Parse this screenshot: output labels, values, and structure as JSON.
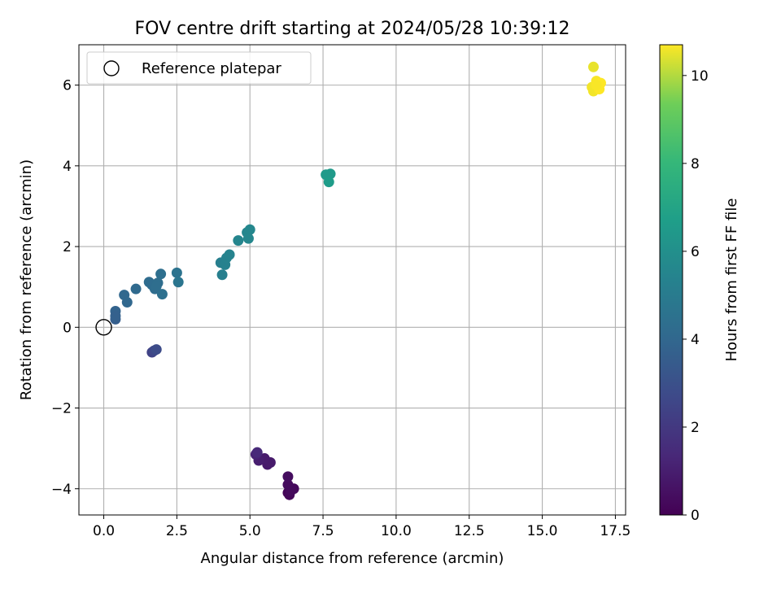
{
  "chart_data": {
    "type": "scatter",
    "title": "FOV centre drift starting at 2024/05/28 10:39:12",
    "xlabel": "Angular distance from reference (arcmin)",
    "ylabel": "Rotation from reference (arcmin)",
    "xlim": [
      -0.85,
      17.85
    ],
    "ylim": [
      -4.65,
      7.0
    ],
    "xticks": [
      0.0,
      2.5,
      5.0,
      7.5,
      10.0,
      12.5,
      15.0,
      17.5
    ],
    "xtick_labels": [
      "0.0",
      "2.5",
      "5.0",
      "7.5",
      "10.0",
      "12.5",
      "15.0",
      "17.5"
    ],
    "yticks": [
      -4,
      -2,
      0,
      2,
      4,
      6
    ],
    "ytick_labels": [
      "−4",
      "−2",
      "0",
      "2",
      "4",
      "6"
    ],
    "grid": true,
    "legend": {
      "placement": "upper left",
      "entries": [
        "Reference platepar"
      ]
    },
    "colorbar": {
      "label": "Hours from first FF file",
      "colormap": "viridis",
      "range": [
        0,
        10.7
      ],
      "ticks": [
        0,
        2,
        4,
        6,
        8,
        10
      ],
      "tick_labels": [
        "0",
        "2",
        "4",
        "6",
        "8",
        "10"
      ]
    },
    "reference_point": {
      "x": 0,
      "y": 0,
      "name": "Reference platepar"
    },
    "series": [
      {
        "points": [
          {
            "x": 6.3,
            "y": -4.1,
            "t": 0.1
          },
          {
            "x": 6.35,
            "y": -4.15,
            "t": 0.2
          },
          {
            "x": 6.5,
            "y": -4.0,
            "t": 0.25
          },
          {
            "x": 6.4,
            "y": -4.05,
            "t": 0.3
          },
          {
            "x": 6.3,
            "y": -3.9,
            "t": 0.35
          },
          {
            "x": 6.3,
            "y": -3.7,
            "t": 0.4
          },
          {
            "x": 5.6,
            "y": -3.4,
            "t": 0.8
          },
          {
            "x": 5.7,
            "y": -3.35,
            "t": 0.85
          },
          {
            "x": 5.5,
            "y": -3.25,
            "t": 0.9
          },
          {
            "x": 5.3,
            "y": -3.3,
            "t": 1.0
          },
          {
            "x": 5.2,
            "y": -3.15,
            "t": 1.2
          },
          {
            "x": 5.25,
            "y": -3.1,
            "t": 1.4
          },
          {
            "x": 1.65,
            "y": -0.62,
            "t": 2.4
          },
          {
            "x": 1.72,
            "y": -0.58,
            "t": 2.6
          },
          {
            "x": 1.8,
            "y": -0.55,
            "t": 2.8
          },
          {
            "x": 0.4,
            "y": 0.2,
            "t": 3.6
          },
          {
            "x": 0.4,
            "y": 0.4,
            "t": 3.8
          },
          {
            "x": 0.4,
            "y": 0.28,
            "t": 3.7
          },
          {
            "x": 0.7,
            "y": 0.8,
            "t": 4.0
          },
          {
            "x": 0.8,
            "y": 0.62,
            "t": 4.0
          },
          {
            "x": 1.1,
            "y": 0.95,
            "t": 4.1
          },
          {
            "x": 1.55,
            "y": 1.12,
            "t": 4.2
          },
          {
            "x": 1.65,
            "y": 1.05,
            "t": 4.2
          },
          {
            "x": 1.75,
            "y": 0.95,
            "t": 4.25
          },
          {
            "x": 1.85,
            "y": 1.1,
            "t": 4.3
          },
          {
            "x": 1.8,
            "y": 1.02,
            "t": 4.3
          },
          {
            "x": 1.95,
            "y": 1.32,
            "t": 4.35
          },
          {
            "x": 2.0,
            "y": 0.82,
            "t": 4.4
          },
          {
            "x": 2.5,
            "y": 1.35,
            "t": 4.6
          },
          {
            "x": 2.55,
            "y": 1.12,
            "t": 4.7
          },
          {
            "x": 4.0,
            "y": 1.6,
            "t": 5.2
          },
          {
            "x": 4.05,
            "y": 1.3,
            "t": 5.2
          },
          {
            "x": 4.15,
            "y": 1.55,
            "t": 5.3
          },
          {
            "x": 4.2,
            "y": 1.72,
            "t": 5.35
          },
          {
            "x": 4.3,
            "y": 1.8,
            "t": 5.4
          },
          {
            "x": 4.6,
            "y": 2.15,
            "t": 5.5
          },
          {
            "x": 4.9,
            "y": 2.35,
            "t": 5.55
          },
          {
            "x": 5.0,
            "y": 2.42,
            "t": 5.6
          },
          {
            "x": 4.95,
            "y": 2.2,
            "t": 5.6
          },
          {
            "x": 7.6,
            "y": 3.78,
            "t": 6.5
          },
          {
            "x": 7.75,
            "y": 3.8,
            "t": 6.5
          },
          {
            "x": 7.7,
            "y": 3.6,
            "t": 6.6
          },
          {
            "x": 16.75,
            "y": 6.45,
            "t": 10.5
          },
          {
            "x": 16.7,
            "y": 5.95,
            "t": 10.6
          },
          {
            "x": 16.75,
            "y": 5.85,
            "t": 10.6
          },
          {
            "x": 16.85,
            "y": 6.1,
            "t": 10.65
          },
          {
            "x": 16.95,
            "y": 5.9,
            "t": 10.7
          },
          {
            "x": 17.0,
            "y": 6.05,
            "t": 10.7
          },
          {
            "x": 16.85,
            "y": 6.0,
            "t": 10.65
          }
        ]
      }
    ]
  }
}
